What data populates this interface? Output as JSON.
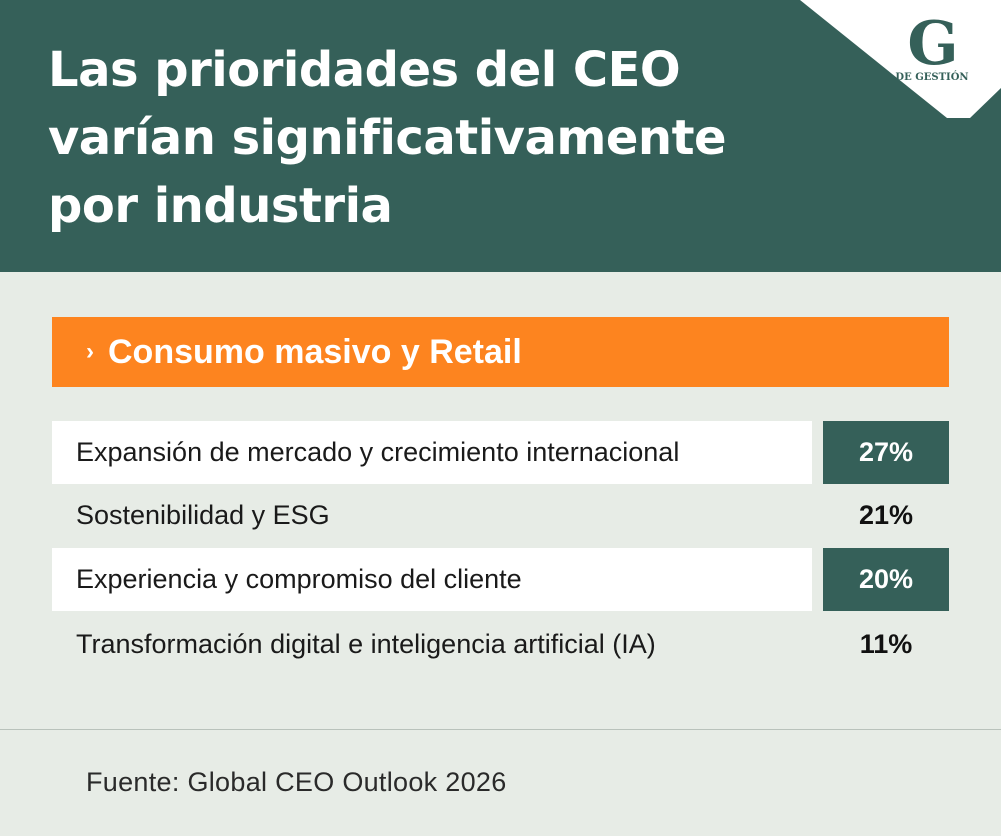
{
  "header": {
    "title_lines": [
      "Las prioridades del CEO",
      "varían significativamente",
      "por industria"
    ],
    "logo": {
      "letter": "G",
      "subtitle": "DE GESTIÓN"
    }
  },
  "section": {
    "chevron": "›",
    "label": "Consumo masivo y Retail"
  },
  "colors": {
    "teal": "#356059",
    "orange": "#fd841f",
    "background": "#e7ece6"
  },
  "chart_data": {
    "type": "table",
    "title": "Las prioridades del CEO varían significativamente por industria",
    "category": "Consumo masivo y Retail",
    "rows": [
      {
        "label": "Expansión de mercado y crecimiento internacional",
        "value": 27,
        "display": "27%"
      },
      {
        "label": "Sostenibilidad y ESG",
        "value": 21,
        "display": "21%"
      },
      {
        "label": "Experiencia y compromiso del cliente",
        "value": 20,
        "display": "20%"
      },
      {
        "label": "Transformación digital e inteligencia artificial (IA)",
        "value": 11,
        "display": "11%"
      }
    ]
  },
  "footer": {
    "source": "Fuente: Global CEO Outlook 2026"
  }
}
